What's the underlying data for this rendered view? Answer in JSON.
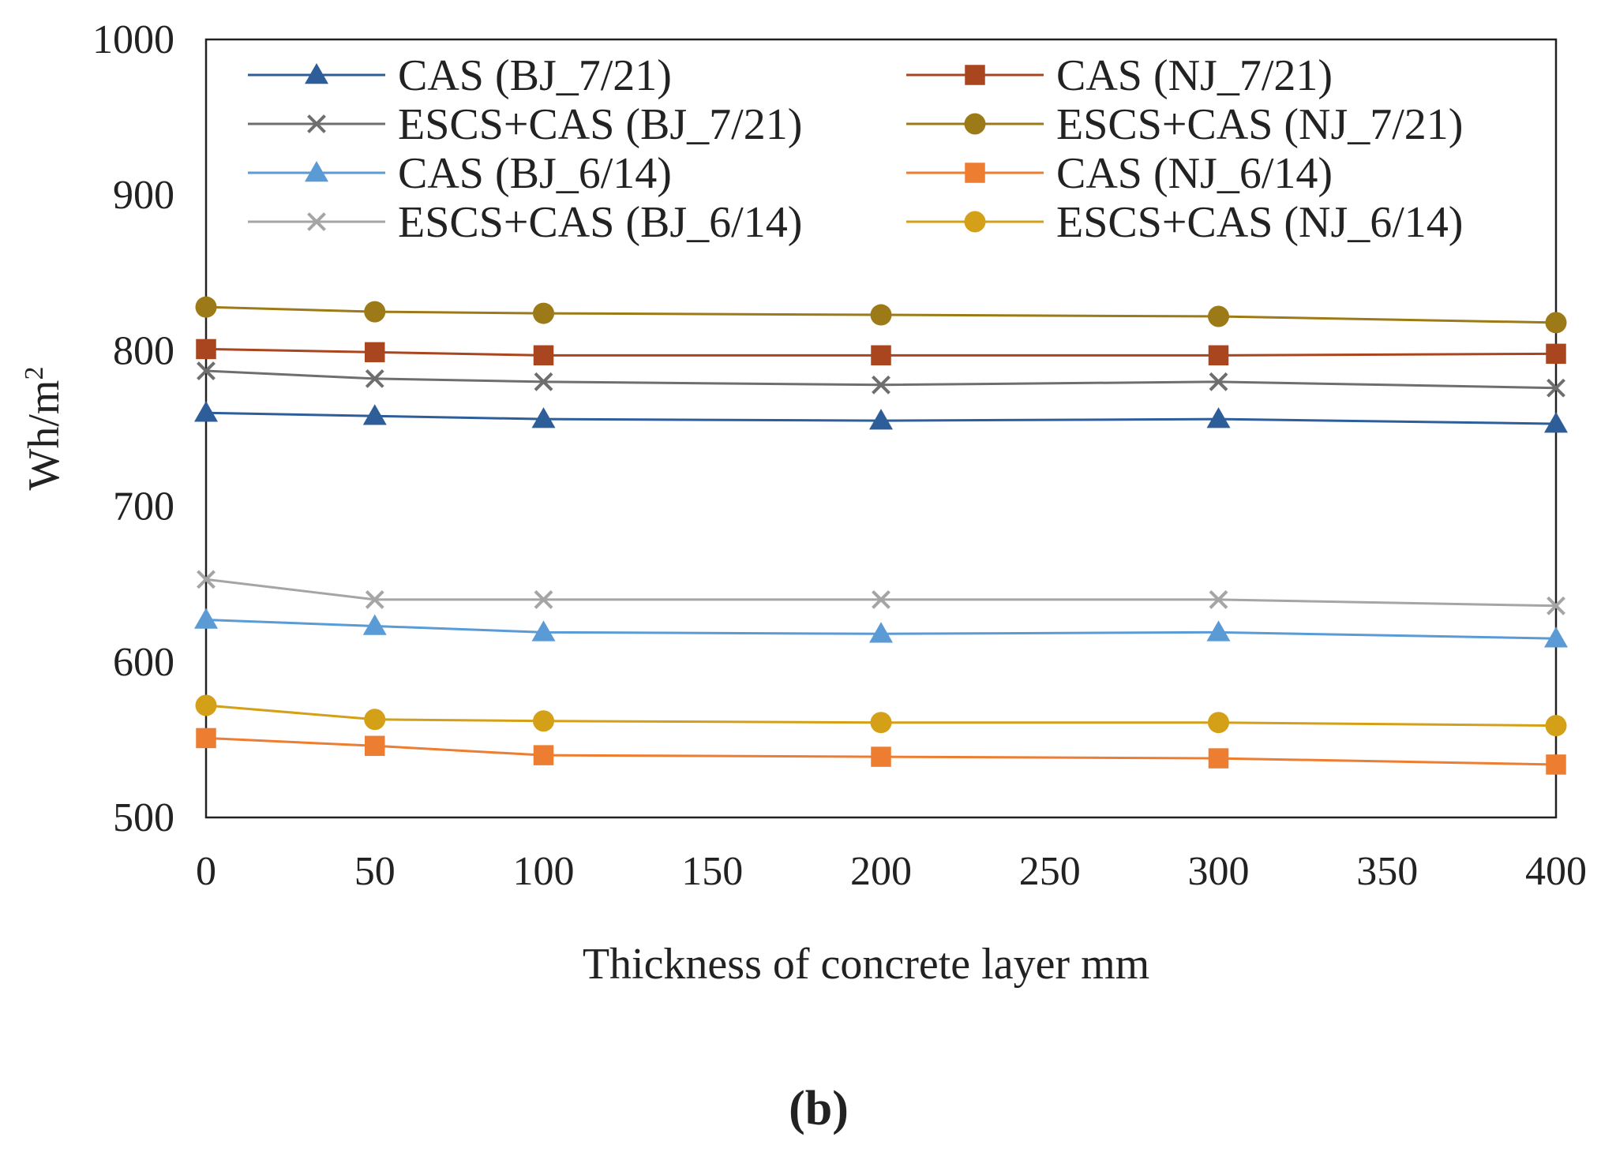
{
  "chart_data": {
    "type": "line",
    "title": "",
    "xlabel": "Thickness of concrete layer mm",
    "ylabel": "Wh/m²",
    "xlim": [
      0,
      400
    ],
    "ylim": [
      500,
      1000
    ],
    "xticks": [
      0,
      50,
      100,
      150,
      200,
      250,
      300,
      350,
      400
    ],
    "xtick_labels": [
      "0",
      "50",
      "100",
      "150",
      "200",
      "250",
      "300",
      "350",
      "400"
    ],
    "yticks": [
      500,
      600,
      700,
      800,
      900,
      1000
    ],
    "ytick_labels": [
      "500",
      "600",
      "700",
      "800",
      "900",
      "1000"
    ],
    "grid": false,
    "legend_position": "top",
    "x": [
      0,
      50,
      100,
      200,
      300,
      400
    ],
    "series": [
      {
        "name": "CAS (BJ_7/21)",
        "marker": "triangle",
        "color": "#2E5E99",
        "values": [
          760,
          758,
          756,
          755,
          756,
          753
        ]
      },
      {
        "name": "CAS (NJ_7/21)",
        "marker": "square",
        "color": "#A9461F",
        "values": [
          801,
          799,
          797,
          797,
          797,
          798
        ]
      },
      {
        "name": "ESCS+CAS (BJ_7/21)",
        "marker": "x",
        "color": "#6E6E6E",
        "values": [
          787,
          782,
          780,
          778,
          780,
          776
        ]
      },
      {
        "name": "ESCS+CAS (NJ_7/21)",
        "marker": "circle",
        "color": "#9C7A17",
        "values": [
          828,
          825,
          824,
          823,
          822,
          818
        ]
      },
      {
        "name": "CAS (BJ_6/14)",
        "marker": "triangle",
        "color": "#5B9BD5",
        "values": [
          627,
          623,
          619,
          618,
          619,
          615
        ]
      },
      {
        "name": "CAS (NJ_6/14)",
        "marker": "square",
        "color": "#ED7D31",
        "values": [
          551,
          546,
          540,
          539,
          538,
          534
        ]
      },
      {
        "name": "ESCS+CAS (BJ_6/14)",
        "marker": "x",
        "color": "#A5A5A5",
        "values": [
          653,
          640,
          640,
          640,
          640,
          636
        ]
      },
      {
        "name": "ESCS+CAS (NJ_6/14)",
        "marker": "circle",
        "color": "#D4A017",
        "values": [
          572,
          563,
          562,
          561,
          561,
          559
        ]
      }
    ]
  },
  "ylabel_main": "Wh/m",
  "ylabel_sup": "2",
  "panel_label": "(b)"
}
